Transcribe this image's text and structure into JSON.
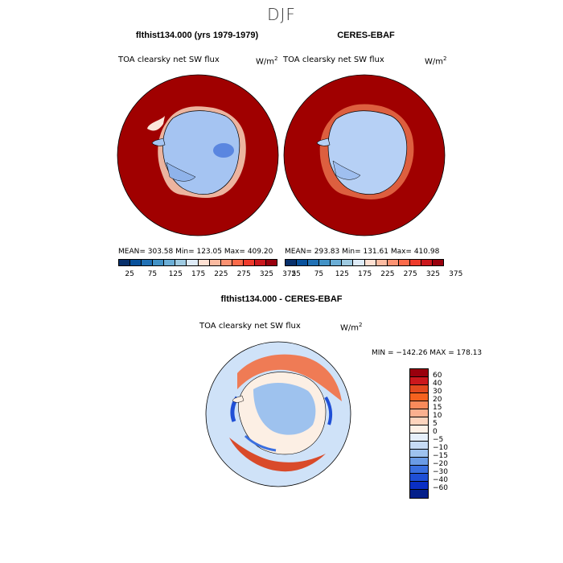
{
  "figure": {
    "season": "DJF"
  },
  "panels": {
    "model": {
      "title": "flthist134.000 (yrs 1979-1979)",
      "variable": "TOA clearsky net SW flux",
      "units": "W/m",
      "units_exp": "2",
      "stats": "MEAN= 303.58   Min= 123.05   Max= 409.20"
    },
    "obs": {
      "title": "CERES-EBAF",
      "variable": "TOA clearsky net SW flux",
      "units": "W/m",
      "units_exp": "2",
      "stats": "MEAN= 293.83   Min= 131.61   Max= 410.98"
    },
    "diff": {
      "title": "flthist134.000 - CERES-EBAF",
      "variable": "TOA clearsky net SW flux",
      "units": "W/m",
      "units_exp": "2",
      "stats": "MIN = −142.26  MAX = 178.13"
    }
  },
  "colorbar_top": {
    "colors": [
      "#08306b",
      "#08519c",
      "#2171b5",
      "#4292c6",
      "#6baed6",
      "#9ecae1",
      "#deebf7",
      "#fee0d2",
      "#fcbba1",
      "#fc9272",
      "#fb6a4a",
      "#ef3b2c",
      "#cb181d",
      "#99000d"
    ],
    "ticks": [
      "25",
      "75",
      "125",
      "175",
      "225",
      "275",
      "325",
      "375"
    ]
  },
  "colorbar_diff": {
    "colors": [
      "#99000d",
      "#cb181d",
      "#e34a1f",
      "#f5621f",
      "#f98a5b",
      "#fbb08f",
      "#fdd4bd",
      "#fdf0e6",
      "#e6effa",
      "#c6dbf5",
      "#9ec2ee",
      "#6a9be6",
      "#3a6fe0",
      "#1f4fd6",
      "#0a2fc4",
      "#041f8a"
    ],
    "labels": [
      "60",
      "40",
      "30",
      "20",
      "15",
      "10",
      "5",
      "0",
      "−5",
      "−10",
      "−15",
      "−20",
      "−30",
      "−40",
      "−60"
    ]
  },
  "map_colors": {
    "ocean_high": "#a00000",
    "ice_low": "#a5c4f2",
    "diff_bg": "#cfe2f8"
  }
}
